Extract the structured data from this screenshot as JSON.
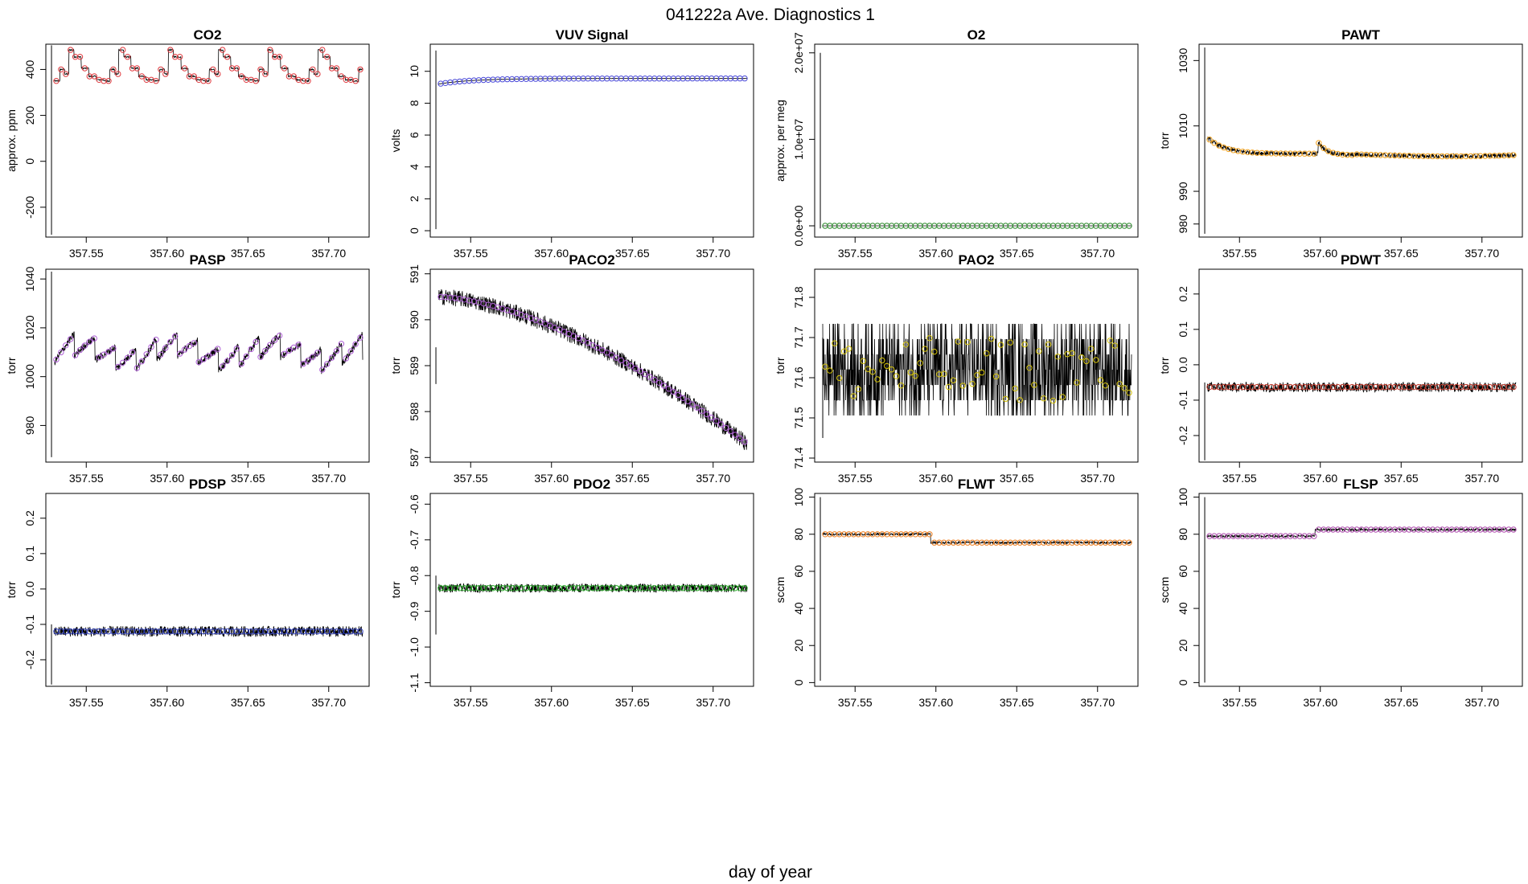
{
  "figure": {
    "title": "041222a   Ave. Diagnostics 1",
    "xlabel": "day of year"
  },
  "chart_data": [
    {
      "type": "line",
      "title": "CO2",
      "ylabel": "approx. ppm",
      "xlim": [
        357.525,
        357.725
      ],
      "ylim": [
        -330,
        510
      ],
      "yticks": [
        -200,
        0,
        200,
        400
      ],
      "ytick_labels": [
        "-200",
        "0",
        "200",
        "400"
      ],
      "xticks": [
        357.55,
        357.6,
        357.65,
        357.7
      ],
      "xtick_labels": [
        "357.55",
        "357.60",
        "357.65",
        "357.70"
      ],
      "marker_color": "#e0393e",
      "spike": [
        357.5285,
        -320,
        505
      ],
      "pattern": "cyc",
      "mean": 395,
      "amp": 60,
      "noise": 3,
      "start": 357.53,
      "end": 357.721
    },
    {
      "type": "line",
      "title": "VUV Signal",
      "ylabel": "volts",
      "xlim": [
        357.525,
        357.725
      ],
      "ylim": [
        -0.4,
        11.7
      ],
      "yticks": [
        0,
        2,
        4,
        6,
        8,
        10
      ],
      "ytick_labels": [
        "0",
        "2",
        "4",
        "6",
        "8",
        "10"
      ],
      "xticks": [
        357.55,
        357.6,
        357.65,
        357.7
      ],
      "xtick_labels": [
        "357.55",
        "357.60",
        "357.65",
        "357.70"
      ],
      "marker_color": "#4b4bd8",
      "spike": [
        357.5285,
        0.1,
        11.3
      ],
      "pattern": "rise",
      "from": 9.2,
      "to": 9.55,
      "noise": 0.01,
      "start": 357.53,
      "end": 357.721
    },
    {
      "type": "line",
      "title": "O2",
      "ylabel": "approx. per meg",
      "xlim": [
        357.525,
        357.725
      ],
      "ylim": [
        -1300000,
        21000000
      ],
      "yticks": [
        0,
        10000000,
        20000000
      ],
      "ytick_labels": [
        "0.0e+00",
        "1.0e+07",
        "2.0e+07"
      ],
      "xticks": [
        357.55,
        357.6,
        357.65,
        357.7
      ],
      "xtick_labels": [
        "357.55",
        "357.60",
        "357.65",
        "357.70"
      ],
      "marker_color": "#2e8b2e",
      "spike": [
        357.5285,
        -300000,
        20000000
      ],
      "pattern": "flat",
      "mean": 0,
      "noise": 0,
      "start": 357.53,
      "end": 357.721
    },
    {
      "type": "line",
      "title": "PAWT",
      "ylabel": "torr",
      "xlim": [
        357.525,
        357.725
      ],
      "ylim": [
        976,
        1035
      ],
      "yticks": [
        980,
        990,
        1010,
        1030
      ],
      "ytick_labels": [
        "980",
        "990",
        "1010",
        "1030"
      ],
      "xticks": [
        357.55,
        357.6,
        357.65,
        357.7
      ],
      "xtick_labels": [
        "357.55",
        "357.60",
        "357.65",
        "357.70"
      ],
      "marker_color": "#f5a623",
      "spike": [
        357.5285,
        977,
        1034
      ],
      "pattern": "pawt",
      "noise": 0.7,
      "start": 357.53,
      "end": 357.721
    },
    {
      "type": "line",
      "title": "PASP",
      "ylabel": "torr",
      "xlim": [
        357.525,
        357.725
      ],
      "ylim": [
        965,
        1044
      ],
      "yticks": [
        980,
        1000,
        1020,
        1040
      ],
      "ytick_labels": [
        "980",
        "1000",
        "1020",
        "1040"
      ],
      "xticks": [
        357.55,
        357.6,
        357.65,
        357.7
      ],
      "xtick_labels": [
        "357.55",
        "357.60",
        "357.65",
        "357.70"
      ],
      "marker_color": "#b060d8",
      "spike": [
        357.5285,
        967,
        1043
      ],
      "pattern": "saw",
      "mean": 1010,
      "amp": 9,
      "noise": 1.5,
      "start": 357.53,
      "end": 357.721
    },
    {
      "type": "line",
      "title": "PACO2",
      "ylabel": "torr",
      "xlim": [
        357.525,
        357.725
      ],
      "ylim": [
        586.9,
        591.1
      ],
      "yticks": [
        587,
        588,
        589,
        590,
        591
      ],
      "ytick_labels": [
        "587",
        "588",
        "589",
        "590",
        "591"
      ],
      "xticks": [
        357.55,
        357.6,
        357.65,
        357.7
      ],
      "xtick_labels": [
        "357.55",
        "357.60",
        "357.65",
        "357.70"
      ],
      "marker_color": "#b060d8",
      "spike": [
        357.5285,
        588.6,
        589.4
      ],
      "pattern": "decline",
      "from": 590.5,
      "to": 587.3,
      "noise": 0.18,
      "start": 357.53,
      "end": 357.721
    },
    {
      "type": "line",
      "title": "PAO2",
      "ylabel": "torr",
      "xlim": [
        357.525,
        357.725
      ],
      "ylim": [
        71.39,
        71.87
      ],
      "yticks": [
        71.4,
        71.5,
        71.6,
        71.7,
        71.8
      ],
      "ytick_labels": [
        "71.4",
        "71.5",
        "71.6",
        "71.7",
        "71.8"
      ],
      "xticks": [
        357.55,
        357.6,
        357.65,
        357.7
      ],
      "xtick_labels": [
        "357.55",
        "357.60",
        "357.65",
        "357.70"
      ],
      "marker_color": "#d4c20a",
      "spike": [
        357.53,
        71.45,
        71.7
      ],
      "pattern": "quant",
      "mean": 71.62,
      "noise": 0.09,
      "start": 357.53,
      "end": 357.721
    },
    {
      "type": "line",
      "title": "PDWT",
      "ylabel": "torr",
      "xlim": [
        357.525,
        357.725
      ],
      "ylim": [
        -0.275,
        0.27
      ],
      "yticks": [
        -0.2,
        -0.1,
        0.0,
        0.1,
        0.2
      ],
      "ytick_labels": [
        "-0.2",
        "-0.1",
        "0.0",
        "0.1",
        "0.2"
      ],
      "xticks": [
        357.55,
        357.6,
        357.65,
        357.7
      ],
      "xtick_labels": [
        "357.55",
        "357.60",
        "357.65",
        "357.70"
      ],
      "marker_color": "#c0392b",
      "spike": [
        357.5285,
        -0.27,
        -0.05
      ],
      "pattern": "flat",
      "mean": -0.063,
      "noise": 0.014,
      "start": 357.53,
      "end": 357.721
    },
    {
      "type": "line",
      "title": "PDSP",
      "ylabel": "torr",
      "xlim": [
        357.525,
        357.725
      ],
      "ylim": [
        -0.275,
        0.27
      ],
      "yticks": [
        -0.2,
        -0.1,
        0.0,
        0.1,
        0.2
      ],
      "ytick_labels": [
        "-0.2",
        "-0.1",
        "0.0",
        "0.1",
        "0.2"
      ],
      "xticks": [
        357.55,
        357.6,
        357.65,
        357.7
      ],
      "xtick_labels": [
        "357.55",
        "357.60",
        "357.65",
        "357.70"
      ],
      "marker_color": "#3040c0",
      "spike": [
        357.5285,
        -0.27,
        -0.1
      ],
      "pattern": "flat",
      "mean": -0.12,
      "noise": 0.015,
      "start": 357.53,
      "end": 357.721
    },
    {
      "type": "line",
      "title": "PDO2",
      "ylabel": "torr",
      "xlim": [
        357.525,
        357.725
      ],
      "ylim": [
        -1.11,
        -0.57
      ],
      "yticks": [
        -1.1,
        -1.0,
        -0.9,
        -0.8,
        -0.7,
        -0.6
      ],
      "ytick_labels": [
        "-1.1",
        "-1.0",
        "-0.9",
        "-0.8",
        "-0.7",
        "-0.6"
      ],
      "xticks": [
        357.55,
        357.6,
        357.65,
        357.7
      ],
      "xtick_labels": [
        "357.55",
        "357.60",
        "357.65",
        "357.70"
      ],
      "marker_color": "#22aa22",
      "spike": [
        357.5285,
        -0.965,
        -0.8
      ],
      "pattern": "flat",
      "mean": -0.835,
      "noise": 0.012,
      "start": 357.53,
      "end": 357.721
    },
    {
      "type": "line",
      "title": "FLWT",
      "ylabel": "sccm",
      "xlim": [
        357.525,
        357.725
      ],
      "ylim": [
        -2,
        102
      ],
      "yticks": [
        0,
        20,
        40,
        60,
        80,
        100
      ],
      "ytick_labels": [
        "0",
        "20",
        "40",
        "60",
        "80",
        "100"
      ],
      "xticks": [
        357.55,
        357.6,
        357.65,
        357.7
      ],
      "xtick_labels": [
        "357.55",
        "357.60",
        "357.65",
        "357.70"
      ],
      "marker_color": "#f08020",
      "spike": [
        357.5285,
        1,
        100
      ],
      "pattern": "step",
      "from": 80,
      "to": 75.5,
      "step_x": 357.597,
      "noise": 0.6,
      "start": 357.53,
      "end": 357.721
    },
    {
      "type": "line",
      "title": "FLSP",
      "ylabel": "sccm",
      "xlim": [
        357.525,
        357.725
      ],
      "ylim": [
        -2,
        102
      ],
      "yticks": [
        0,
        20,
        40,
        60,
        80,
        100
      ],
      "ytick_labels": [
        "0",
        "20",
        "40",
        "60",
        "80",
        "100"
      ],
      "xticks": [
        357.55,
        357.6,
        357.65,
        357.7
      ],
      "xtick_labels": [
        "357.55",
        "357.60",
        "357.65",
        "357.70"
      ],
      "marker_color": "#b050b0",
      "spike": [
        357.5285,
        0,
        100
      ],
      "pattern": "step",
      "from": 79,
      "to": 82.5,
      "step_x": 357.597,
      "noise": 0.6,
      "start": 357.53,
      "end": 357.721
    }
  ]
}
